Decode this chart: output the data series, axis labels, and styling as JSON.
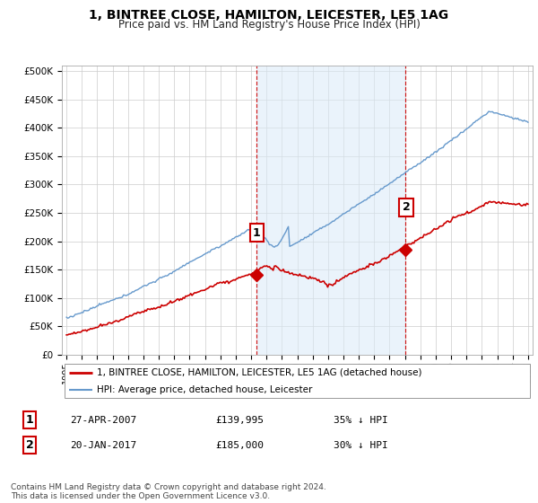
{
  "title": "1, BINTREE CLOSE, HAMILTON, LEICESTER, LE5 1AG",
  "subtitle": "Price paid vs. HM Land Registry's House Price Index (HPI)",
  "title_fontsize": 10,
  "subtitle_fontsize": 8.5,
  "ylabel_ticks": [
    "£0",
    "£50K",
    "£100K",
    "£150K",
    "£200K",
    "£250K",
    "£300K",
    "£350K",
    "£400K",
    "£450K",
    "£500K"
  ],
  "ytick_values": [
    0,
    50000,
    100000,
    150000,
    200000,
    250000,
    300000,
    350000,
    400000,
    450000,
    500000
  ],
  "ylim": [
    0,
    510000
  ],
  "xlim_start": 1994.7,
  "xlim_end": 2025.3,
  "xtick_years": [
    1995,
    1996,
    1997,
    1998,
    1999,
    2000,
    2001,
    2002,
    2003,
    2004,
    2005,
    2006,
    2007,
    2008,
    2009,
    2010,
    2011,
    2012,
    2013,
    2014,
    2015,
    2016,
    2017,
    2018,
    2019,
    2020,
    2021,
    2022,
    2023,
    2024,
    2025
  ],
  "background_color": "#ffffff",
  "plot_bg_color": "#ffffff",
  "grid_color": "#cccccc",
  "shade_color": "#daeaf8",
  "red_line_color": "#cc0000",
  "blue_line_color": "#6699cc",
  "marker1_date": 2007.32,
  "marker1_price": 139995,
  "marker2_date": 2017.05,
  "marker2_price": 185000,
  "vline_color": "#cc0000",
  "marker_box_color": "#cc0000",
  "legend_label_red": "1, BINTREE CLOSE, HAMILTON, LEICESTER, LE5 1AG (detached house)",
  "legend_label_blue": "HPI: Average price, detached house, Leicester",
  "table_row1": [
    "1",
    "27-APR-2007",
    "£139,995",
    "35% ↓ HPI"
  ],
  "table_row2": [
    "2",
    "20-JAN-2017",
    "£185,000",
    "30% ↓ HPI"
  ],
  "footnote": "Contains HM Land Registry data © Crown copyright and database right 2024.\nThis data is licensed under the Open Government Licence v3.0.",
  "footnote_fontsize": 6.5
}
